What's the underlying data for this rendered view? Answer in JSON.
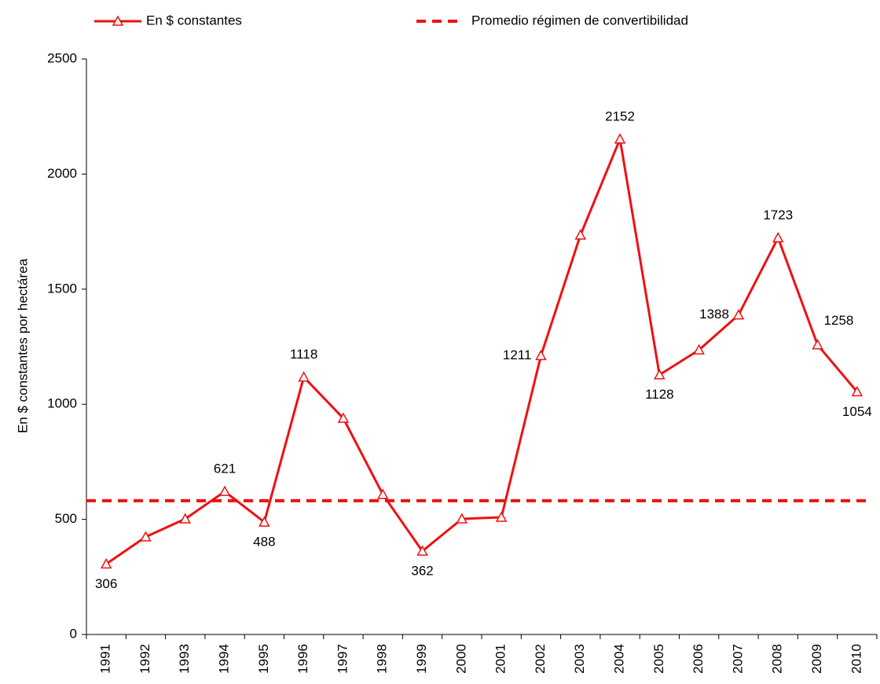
{
  "chart_data": {
    "type": "line",
    "y_label": "En $ constantes por hectárea",
    "categories": [
      "1991",
      "1992",
      "1993",
      "1994",
      "1995",
      "1996",
      "1997",
      "1998",
      "1999",
      "2000",
      "2001",
      "2002",
      "2003",
      "2004",
      "2005",
      "2006",
      "2007",
      "2008",
      "2009",
      "2010"
    ],
    "series": [
      {
        "name": "En $ constantes",
        "color": "#ee1111",
        "values": [
          306,
          424,
          502,
          621,
          488,
          1118,
          939,
          608,
          362,
          502,
          509,
          1211,
          1735,
          2152,
          1128,
          1236,
          1388,
          1723,
          1258,
          1054
        ],
        "value_labels": [
          "306",
          null,
          null,
          "621",
          "488",
          "1118",
          null,
          null,
          "362",
          null,
          null,
          "1211",
          null,
          "2152",
          "1128",
          null,
          "1388",
          "1723",
          "1258",
          "1054"
        ]
      }
    ],
    "reference_line": {
      "name": "Promedio régimen de convertibilidad",
      "value": 581,
      "color": "#ee1111"
    },
    "ylim": [
      0,
      2500
    ],
    "yticks": [
      0,
      500,
      1000,
      1500,
      2000,
      2500
    ],
    "grid": false
  }
}
